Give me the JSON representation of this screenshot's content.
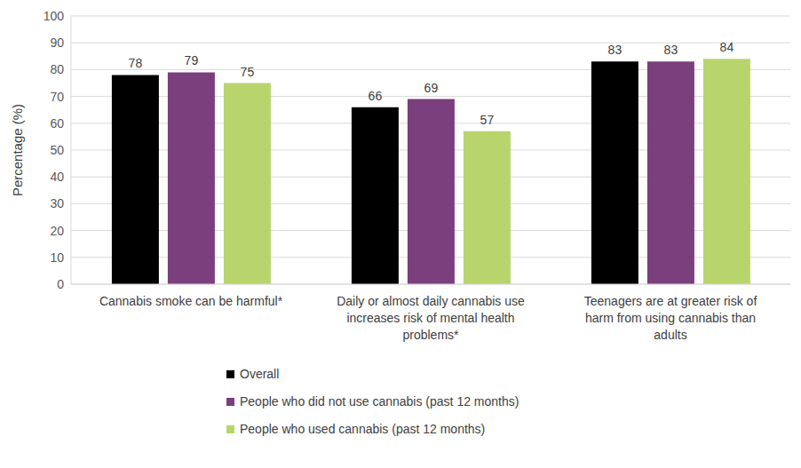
{
  "chart_data": {
    "type": "bar",
    "y_label": "Percentage (%)",
    "categories": [
      "Cannabis smoke can be harmful*",
      "Daily or almost daily cannabis use increases risk of mental health problems*",
      "Teenagers are at greater risk of harm from using cannabis than adults"
    ],
    "series": [
      {
        "name": "Overall",
        "color": "#000000",
        "values": [
          78,
          66,
          83
        ]
      },
      {
        "name": "People who did not use cannabis (past 12 months)",
        "color": "#7b3f7d",
        "values": [
          79,
          69,
          83
        ]
      },
      {
        "name": "People who used cannabis (past 12 months)",
        "color": "#b7d56c",
        "values": [
          75,
          57,
          84
        ]
      }
    ],
    "ylim": [
      0,
      100
    ],
    "yticks": [
      0,
      10,
      20,
      30,
      40,
      50,
      60,
      70,
      80,
      90,
      100
    ],
    "grid": true,
    "legend": "bottom",
    "data_labels": true
  }
}
